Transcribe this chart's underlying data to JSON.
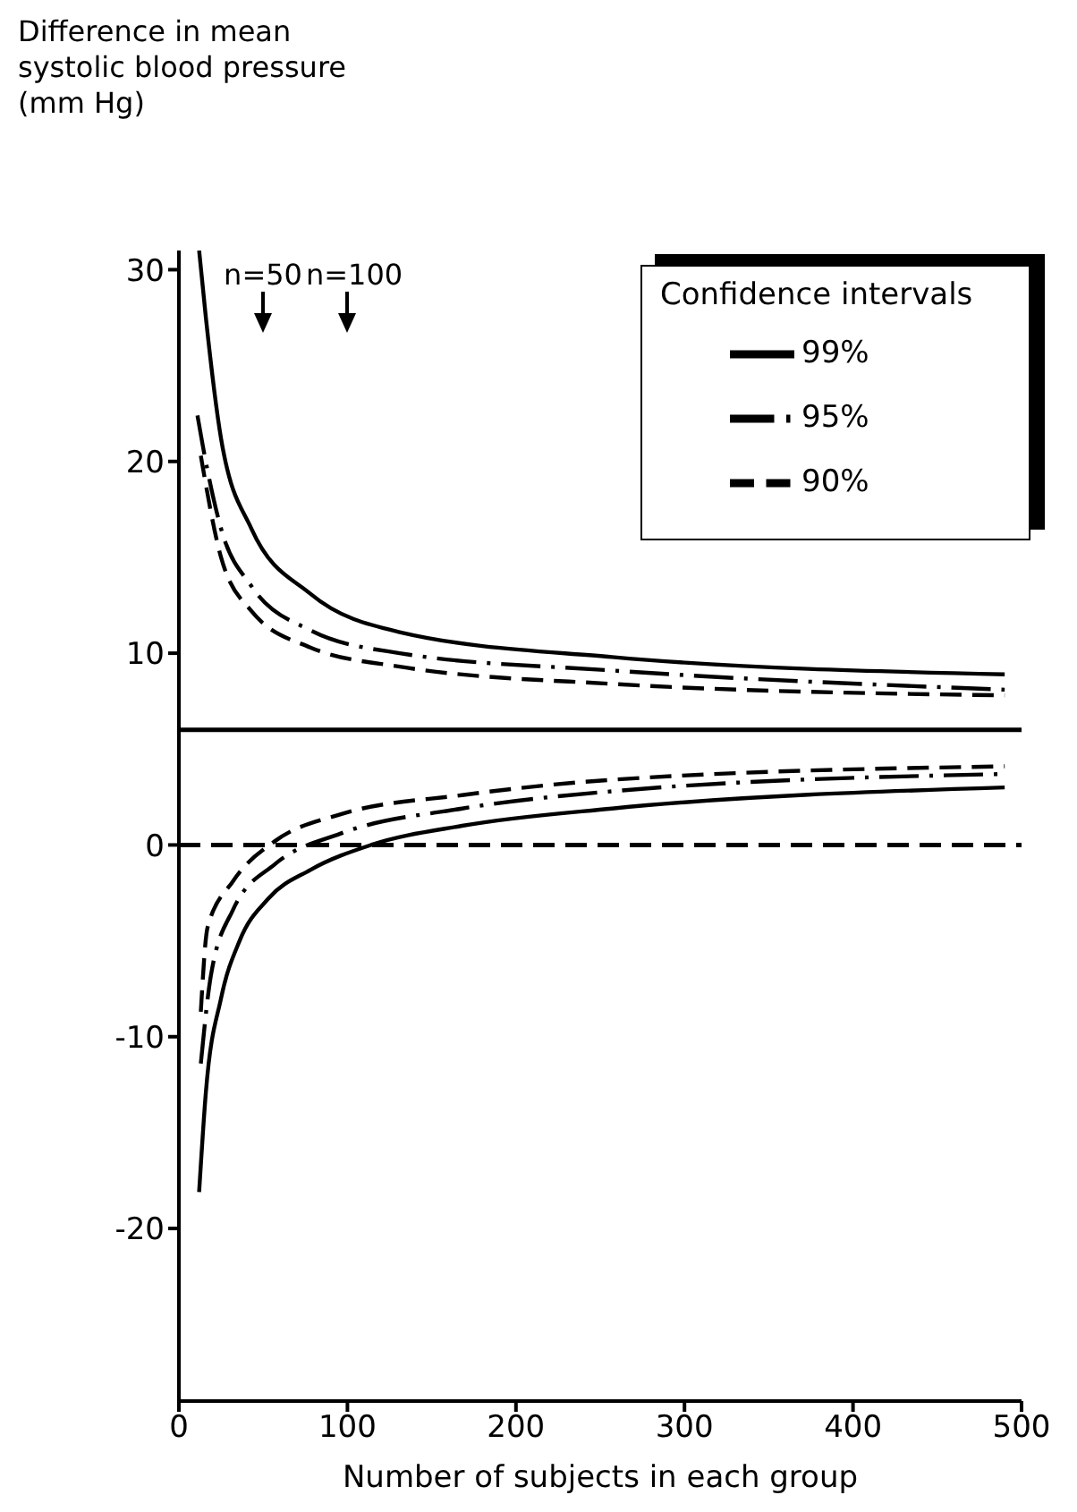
{
  "chart_data": {
    "type": "line",
    "ylabel": "Difference in mean systolic blood pressure (mm Hg)",
    "xlabel": "Number of subjects in each group",
    "legend_title": "Confidence intervals",
    "legend": "top right",
    "xlim": [
      0,
      500
    ],
    "ylim": [
      -29,
      31
    ],
    "xticks": [
      0,
      100,
      200,
      300,
      400,
      500
    ],
    "yticks": [
      -20,
      -10,
      0,
      10,
      20,
      30
    ],
    "grid": false,
    "marker": "none",
    "series": [
      {
        "name": "99%",
        "color": "#000000",
        "line_style": "solid",
        "x": [
          12,
          16,
          25,
          43,
          78,
          131,
          257,
          490,
          null,
          12,
          16,
          25,
          36,
          53,
          78,
          114,
          168,
          257,
          490
        ],
        "values": [
          31,
          27.5,
          21.2,
          16.5,
          13.1,
          11.1,
          9.8,
          8.9,
          null,
          -18.1,
          -12.9,
          -8.0,
          -5.0,
          -2.8,
          -1.3,
          0,
          1.0,
          1.9,
          3.0
        ]
      },
      {
        "name": "95%",
        "color": "#000000",
        "line_style": "dashdot",
        "x": [
          11,
          14,
          25,
          43,
          78,
          131,
          257,
          490,
          null,
          13,
          19,
          32,
          57,
          96,
          168,
          257,
          490
        ],
        "values": [
          22.4,
          20.9,
          16.5,
          13.5,
          11.2,
          10.0,
          9.1,
          8.1,
          null,
          -11.4,
          -6.8,
          -3.4,
          -1.0,
          0.6,
          1.9,
          2.8,
          3.7
        ]
      },
      {
        "name": "90%",
        "color": "#000000",
        "line_style": "dashed",
        "x": [
          13,
          25,
          43,
          78,
          131,
          257,
          490,
          null,
          13,
          17,
          32,
          57,
          96,
          168,
          257,
          490
        ],
        "values": [
          20.3,
          15.0,
          12.2,
          10.3,
          9.3,
          8.4,
          7.8,
          null,
          -8.7,
          -4.3,
          -1.9,
          0.2,
          1.6,
          2.6,
          3.4,
          4.1
        ]
      }
    ],
    "ref_lines": [
      {
        "axis": "y",
        "value": 6,
        "line_style": "solid",
        "color": "#000000"
      },
      {
        "axis": "y",
        "value": 0,
        "line_style": "dashed",
        "color": "#000000"
      }
    ],
    "annotations": [
      "n=50",
      "n=100"
    ]
  }
}
